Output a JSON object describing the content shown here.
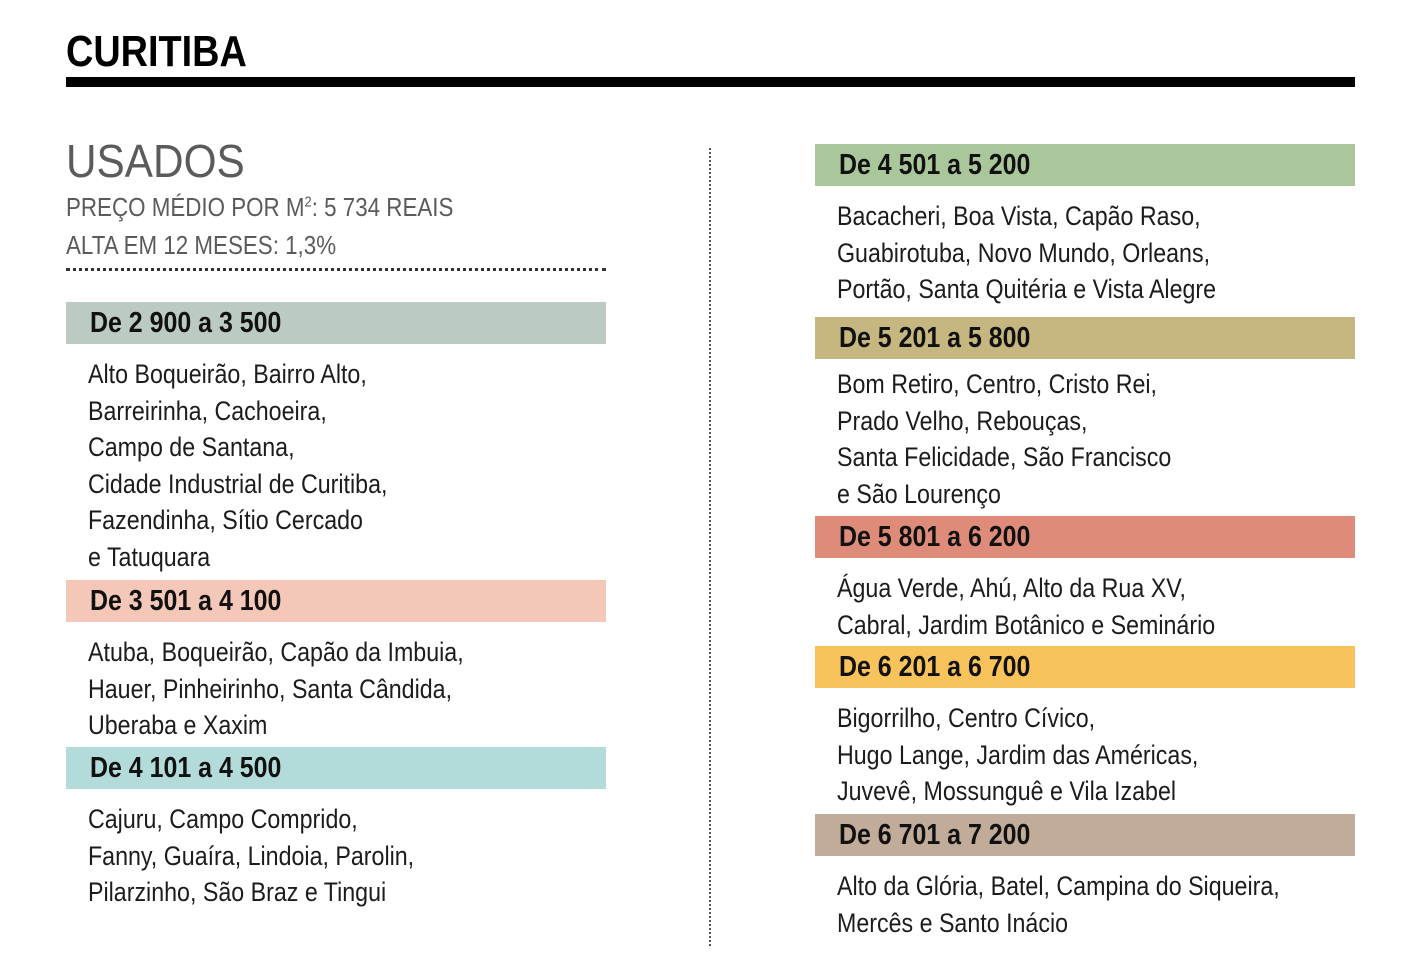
{
  "header": {
    "title": "CURITIBA"
  },
  "section": {
    "title": "USADOS",
    "price_prefix": "PREÇO MÉDIO POR M",
    "price_sup": "2",
    "price_suffix": ": 5 734 REAIS",
    "change": "ALTA EM 12 MESES: 1,3%"
  },
  "ranges": [
    {
      "label": "De 2 900 a 3 500",
      "color": "#bccbc1",
      "lines": [
        "Alto Boqueirão, Bairro Alto,",
        "Barreirinha, Cachoeira,",
        "Campo de Santana,",
        "Cidade Industrial de Curitiba,",
        "Fazendinha, Sítio Cercado",
        "e Tatuquara"
      ]
    },
    {
      "label": "De 3 501 a 4 100",
      "color": "#f5c7b9",
      "lines": [
        "Atuba, Boqueirão, Capão da Imbuia,",
        "Hauer, Pinheirinho, Santa Cândida,",
        "Uberaba e Xaxim"
      ]
    },
    {
      "label": "De 4 101 a 4 500",
      "color": "#b2dbd9",
      "lines": [
        "Cajuru, Campo Comprido,",
        "Fanny, Guaíra, Lindoia, Parolin,",
        "Pilarzinho, São Braz e Tingui"
      ]
    },
    {
      "label": "De 4 501 a 5 200",
      "color": "#a9c79a",
      "lines": [
        "Bacacheri, Boa Vista, Capão Raso,",
        "Guabirotuba, Novo Mundo, Orleans,",
        "Portão, Santa Quitéria e Vista Alegre"
      ]
    },
    {
      "label": "De 5 201 a 5 800",
      "color": "#c5b77f",
      "lines": [
        "Bom Retiro, Centro, Cristo Rei,",
        "Prado Velho, Rebouças,",
        "Santa Felicidade, São Francisco",
        "e São Lourenço"
      ]
    },
    {
      "label": "De 5 801 a 6 200",
      "color": "#de8c79",
      "lines": [
        "Água Verde, Ahú, Alto da Rua XV,",
        "Cabral, Jardim Botânico e Seminário"
      ]
    },
    {
      "label": "De 6 201 a 6 700",
      "color": "#f8c35a",
      "lines": [
        "Bigorrilho, Centro Cívico,",
        "Hugo Lange, Jardim das Américas,",
        "Juvevê, Mossunguê e Vila Izabel"
      ]
    },
    {
      "label": "De 6 701 a 7 200",
      "color": "#c1ab99",
      "lines": [
        "Alto da Glória, Batel, Campina do Siqueira,",
        "Mercês e Santo Inácio"
      ]
    }
  ]
}
